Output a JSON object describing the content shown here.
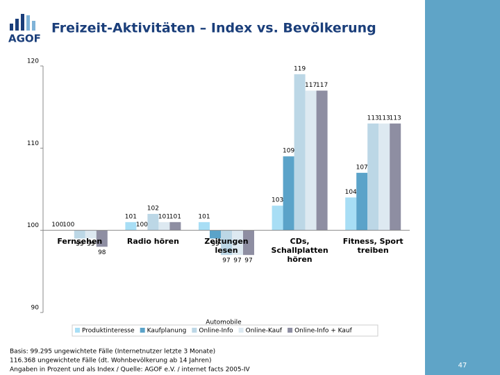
{
  "logo": "AGOF",
  "page_number": "47",
  "footer": [
    "Basis: 99.295 ungewichtete Fälle (Internetnutzer letzte 3 Monate)",
    "116.368 ungewichtete Fälle (dt. Wohnbevölkerung ab 14 Jahren)",
    "Angaben in Prozent und als Index / Quelle: AGOF e.V. / internet facts 2005-IV"
  ],
  "chart_data": {
    "type": "bar",
    "title": "Freizeit-Aktivitäten – Index vs. Bevölkerung",
    "annotation": "Automobile",
    "categories": [
      "Fernsehen",
      "Radio hören",
      "Zeitungen lesen",
      "CDs, Schallplatten hören",
      "Fitness, Sport treiben"
    ],
    "series": [
      {
        "name": "Produktinteresse",
        "color": "#a8def5",
        "values": [
          100,
          101,
          101,
          103,
          104
        ]
      },
      {
        "name": "Kaufplanung",
        "color": "#5ba3c9",
        "values": [
          100,
          100,
          99,
          109,
          107
        ]
      },
      {
        "name": "Online-Info",
        "color": "#bcd7e6",
        "values": [
          99,
          102,
          97,
          119,
          113
        ]
      },
      {
        "name": "Online-Kauf",
        "color": "#dde9f1",
        "values": [
          99,
          101,
          97,
          117,
          113
        ]
      },
      {
        "name": "Online-Info + Kauf",
        "color": "#8e8ea2",
        "values": [
          98,
          101,
          97,
          117,
          113
        ]
      }
    ],
    "baseline": 100,
    "ylim": [
      90,
      120
    ],
    "yticks": [
      90,
      100,
      110,
      120
    ]
  }
}
